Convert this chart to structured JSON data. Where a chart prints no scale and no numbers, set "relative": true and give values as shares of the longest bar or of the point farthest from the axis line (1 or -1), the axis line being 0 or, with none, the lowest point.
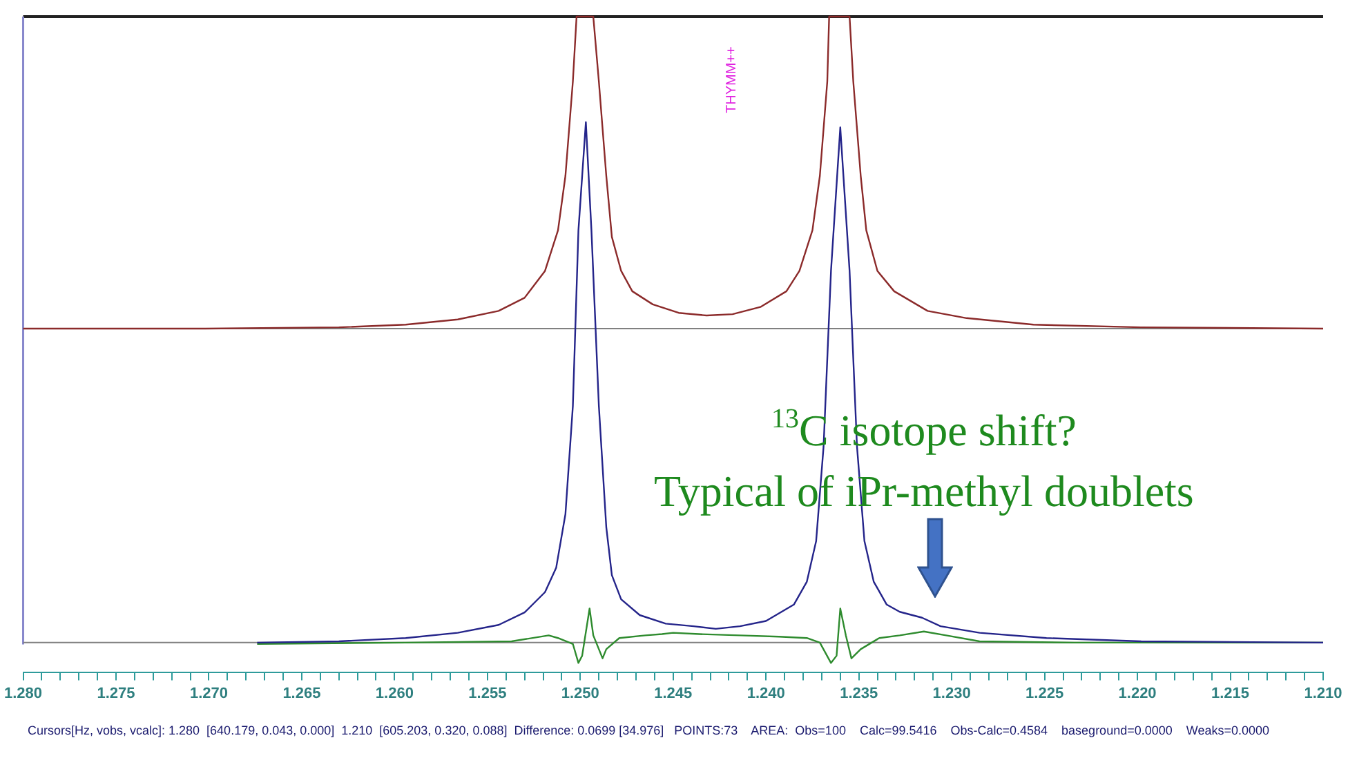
{
  "chart_data": {
    "type": "line",
    "relative": true,
    "marker": "none",
    "line_style": "solid",
    "xlim": [
      1.28,
      1.21
    ],
    "xticks": [
      {
        "value": 1.28,
        "label": "1.280"
      },
      {
        "value": 1.279,
        "label": null
      },
      {
        "value": 1.278,
        "label": null
      },
      {
        "value": 1.277,
        "label": null
      },
      {
        "value": 1.276,
        "label": null
      },
      {
        "value": 1.275,
        "label": "1.275"
      },
      {
        "value": 1.274,
        "label": null
      },
      {
        "value": 1.273,
        "label": null
      },
      {
        "value": 1.272,
        "label": null
      },
      {
        "value": 1.271,
        "label": null
      },
      {
        "value": 1.27,
        "label": "1.270"
      },
      {
        "value": 1.269,
        "label": null
      },
      {
        "value": 1.268,
        "label": null
      },
      {
        "value": 1.267,
        "label": null
      },
      {
        "value": 1.266,
        "label": null
      },
      {
        "value": 1.265,
        "label": "1.265"
      },
      {
        "value": 1.264,
        "label": null
      },
      {
        "value": 1.263,
        "label": null
      },
      {
        "value": 1.262,
        "label": null
      },
      {
        "value": 1.261,
        "label": null
      },
      {
        "value": 1.26,
        "label": "1.260"
      },
      {
        "value": 1.259,
        "label": null
      },
      {
        "value": 1.258,
        "label": null
      },
      {
        "value": 1.257,
        "label": null
      },
      {
        "value": 1.256,
        "label": null
      },
      {
        "value": 1.255,
        "label": "1.255"
      },
      {
        "value": 1.254,
        "label": null
      },
      {
        "value": 1.253,
        "label": null
      },
      {
        "value": 1.252,
        "label": null
      },
      {
        "value": 1.251,
        "label": null
      },
      {
        "value": 1.25,
        "label": "1.250"
      },
      {
        "value": 1.249,
        "label": null
      },
      {
        "value": 1.248,
        "label": null
      },
      {
        "value": 1.247,
        "label": null
      },
      {
        "value": 1.246,
        "label": null
      },
      {
        "value": 1.245,
        "label": "1.245"
      },
      {
        "value": 1.244,
        "label": null
      },
      {
        "value": 1.243,
        "label": null
      },
      {
        "value": 1.242,
        "label": null
      },
      {
        "value": 1.241,
        "label": null
      },
      {
        "value": 1.24,
        "label": "1.240"
      },
      {
        "value": 1.239,
        "label": null
      },
      {
        "value": 1.238,
        "label": null
      },
      {
        "value": 1.237,
        "label": null
      },
      {
        "value": 1.236,
        "label": null
      },
      {
        "value": 1.235,
        "label": "1.235"
      },
      {
        "value": 1.234,
        "label": null
      },
      {
        "value": 1.233,
        "label": null
      },
      {
        "value": 1.232,
        "label": null
      },
      {
        "value": 1.231,
        "label": null
      },
      {
        "value": 1.23,
        "label": "1.230"
      },
      {
        "value": 1.229,
        "label": null
      },
      {
        "value": 1.228,
        "label": null
      },
      {
        "value": 1.227,
        "label": null
      },
      {
        "value": 1.226,
        "label": null
      },
      {
        "value": 1.225,
        "label": "1.225"
      },
      {
        "value": 1.224,
        "label": null
      },
      {
        "value": 1.223,
        "label": null
      },
      {
        "value": 1.222,
        "label": null
      },
      {
        "value": 1.221,
        "label": null
      },
      {
        "value": 1.22,
        "label": "1.220"
      },
      {
        "value": 1.219,
        "label": null
      },
      {
        "value": 1.218,
        "label": null
      },
      {
        "value": 1.217,
        "label": null
      },
      {
        "value": 1.216,
        "label": null
      },
      {
        "value": 1.215,
        "label": "1.215"
      },
      {
        "value": 1.214,
        "label": null
      },
      {
        "value": 1.213,
        "label": null
      },
      {
        "value": 1.212,
        "label": null
      },
      {
        "value": 1.211,
        "label": null
      },
      {
        "value": 1.21,
        "label": "1.210"
      }
    ],
    "series": [
      {
        "color": "#8b2a2a",
        "x": [
          1.28,
          1.2702,
          1.263,
          1.2594,
          1.2566,
          1.2544,
          1.253,
          1.2519,
          1.2512,
          1.2508,
          1.2504,
          1.2502,
          1.2493,
          1.249,
          1.2486,
          1.2483,
          1.2478,
          1.2472,
          1.2461,
          1.2447,
          1.2432,
          1.2418,
          1.2403,
          1.2389,
          1.2382,
          1.2375,
          1.2371,
          1.2367,
          1.2366,
          1.2355,
          1.2353,
          1.2349,
          1.2346,
          1.234,
          1.2331,
          1.2313,
          1.2292,
          1.2256,
          1.2198,
          1.21
        ],
        "values": [
          0.524,
          0.524,
          0.526,
          0.53,
          0.538,
          0.551,
          0.571,
          0.612,
          0.674,
          0.757,
          0.901,
          1,
          1,
          0.901,
          0.757,
          0.664,
          0.612,
          0.581,
          0.561,
          0.548,
          0.544,
          0.546,
          0.557,
          0.581,
          0.612,
          0.674,
          0.757,
          0.901,
          1,
          1,
          0.901,
          0.757,
          0.674,
          0.612,
          0.581,
          0.551,
          0.54,
          0.53,
          0.526,
          0.524
        ]
      },
      {
        "color": "#24248a",
        "x": [
          1.2674,
          1.263,
          1.2594,
          1.2566,
          1.2544,
          1.253,
          1.2519,
          1.2513,
          1.2508,
          1.2504,
          1.2501,
          1.2497,
          1.2494,
          1.249,
          1.2486,
          1.2483,
          1.2478,
          1.2468,
          1.2454,
          1.2439,
          1.2427,
          1.2414,
          1.24,
          1.2385,
          1.2378,
          1.2373,
          1.2369,
          1.2365,
          1.236,
          1.2355,
          1.2351,
          1.2347,
          1.2342,
          1.2335,
          1.2328,
          1.2316,
          1.2306,
          1.2285,
          1.2249,
          1.2198,
          1.21
        ],
        "values": [
          0.045,
          0.047,
          0.052,
          0.06,
          0.072,
          0.091,
          0.122,
          0.159,
          0.241,
          0.406,
          0.674,
          0.839,
          0.674,
          0.406,
          0.221,
          0.148,
          0.111,
          0.087,
          0.074,
          0.07,
          0.066,
          0.07,
          0.078,
          0.103,
          0.138,
          0.2,
          0.344,
          0.612,
          0.831,
          0.612,
          0.344,
          0.2,
          0.138,
          0.103,
          0.092,
          0.083,
          0.07,
          0.06,
          0.052,
          0.047,
          0.045
        ]
      },
      {
        "color": "#2e8b2e",
        "x": [
          1.2674,
          1.2594,
          1.2537,
          1.2517,
          1.2512,
          1.2504,
          1.2501,
          1.2499,
          1.2495,
          1.2493,
          1.2488,
          1.2486,
          1.2479,
          1.2465,
          1.2456,
          1.245,
          1.2436,
          1.2414,
          1.2393,
          1.2378,
          1.2371,
          1.2365,
          1.2362,
          1.236,
          1.2357,
          1.2354,
          1.2349,
          1.2339,
          1.2328,
          1.2315,
          1.2303,
          1.2285,
          1.2234,
          1.21
        ],
        "values": [
          0.043,
          0.045,
          0.047,
          0.056,
          0.052,
          0.043,
          0.014,
          0.025,
          0.097,
          0.056,
          0.021,
          0.035,
          0.052,
          0.056,
          0.058,
          0.06,
          0.058,
          0.056,
          0.054,
          0.052,
          0.045,
          0.014,
          0.025,
          0.097,
          0.056,
          0.021,
          0.035,
          0.052,
          0.056,
          0.062,
          0.056,
          0.047,
          0.045,
          0.045
        ]
      }
    ],
    "ref_lines": [
      {
        "axis": "y",
        "value": 0.524,
        "color": "#808080"
      },
      {
        "axis": "y",
        "value": 0.045,
        "color": "#808080"
      }
    ],
    "annotations": [
      "THYMM++",
      {
        "text": "$^{13}$C isotope shift?\nTypical of iPr-methyl doublets",
        "x": 1.2309,
        "y": 0.083
      },
      "Cursors[Hz, vobs, vcalc]: 1.280  [640.179, 0.043, 0.000]  1.210  [605.203, 0.320, 0.088]  Difference: 0.0699 [34.976]   POINTS:73    AREA:  Obs=100    Calc=99.5416    Obs-Calc=0.4584    baseground=0.0000    Weaks=0.0000"
    ]
  }
}
